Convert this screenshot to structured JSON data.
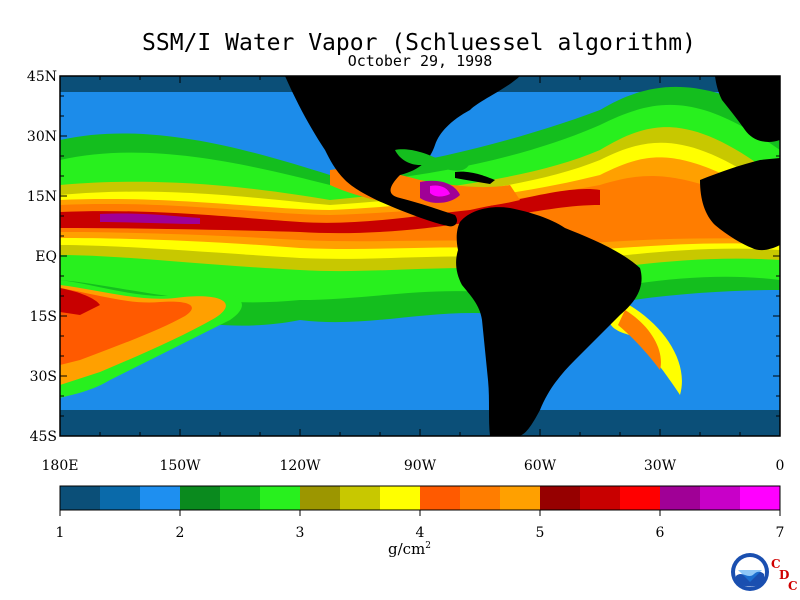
{
  "title": "SSM/I Water Vapor (Schluessel algorithm)",
  "date": "October 29, 1998",
  "lat_labels": [
    "45N",
    "30N",
    "15N",
    "EQ",
    "15S",
    "30S",
    "45S"
  ],
  "lon_labels": [
    "180E",
    "150W",
    "120W",
    "90W",
    "60W",
    "30W",
    "0"
  ],
  "colorbar": {
    "ticks": [
      "1",
      "2",
      "3",
      "4",
      "5",
      "6",
      "7"
    ],
    "units": "g/cm",
    "units_sup": "2",
    "colors": [
      "#0b4f78",
      "#0a6aaa",
      "#1e8ff0",
      "#0a8a1e",
      "#14be1e",
      "#28f01e",
      "#9c9600",
      "#c8c800",
      "#ffff00",
      "#ff5a00",
      "#ff7d00",
      "#ffa000",
      "#960000",
      "#c80000",
      "#ff0000",
      "#a00096",
      "#c800c8",
      "#ff00ff"
    ]
  },
  "logo": {
    "noaa_text": "NOAA",
    "cdc_letters": [
      "C",
      "D",
      "C"
    ]
  },
  "map": {
    "lat_range": [
      -45,
      45
    ],
    "lon_range": [
      -180,
      0
    ],
    "land_color": "#000000",
    "ocean_dry_color": "#0b4f78"
  }
}
